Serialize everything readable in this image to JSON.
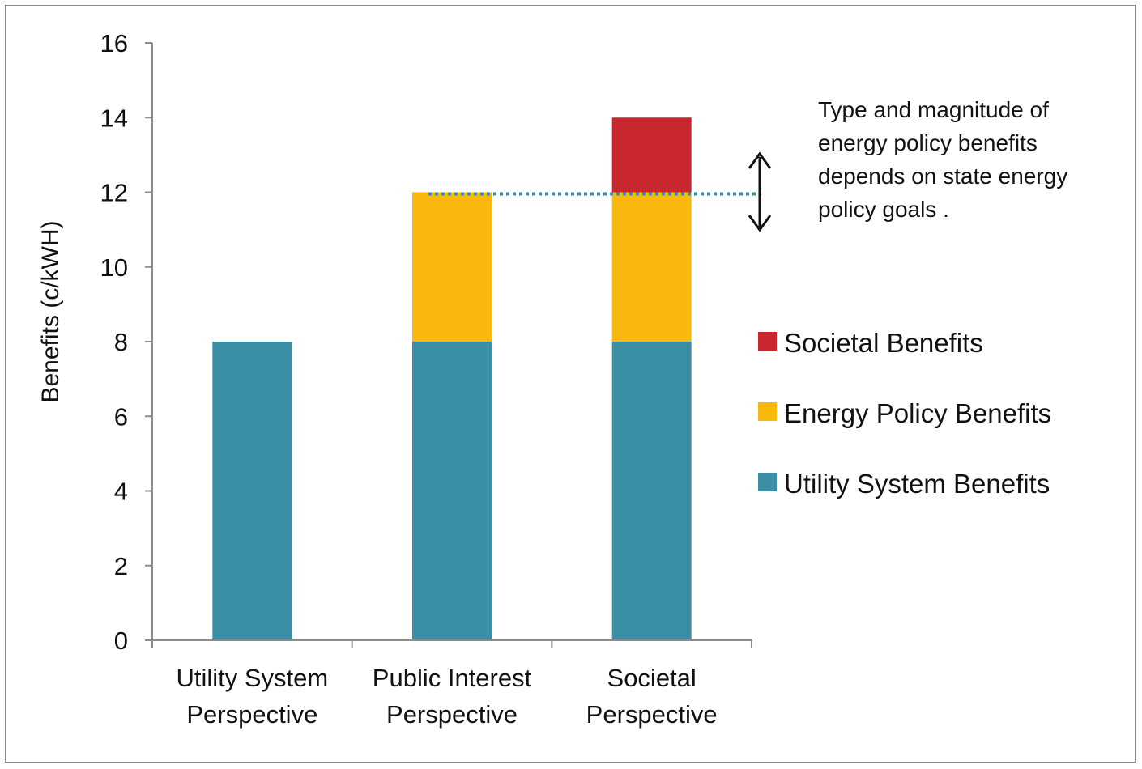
{
  "chart_data": {
    "type": "bar",
    "stacked": true,
    "categories": [
      [
        "Utility System",
        "Perspective"
      ],
      [
        "Public Interest",
        "Perspective"
      ],
      [
        "Societal",
        "Perspective"
      ]
    ],
    "series": [
      {
        "name": "Utility System Benefits",
        "color": "#3A8FA5",
        "values": [
          8,
          8,
          8
        ]
      },
      {
        "name": "Energy Policy Benefits",
        "color": "#F8B80E",
        "values": [
          0,
          4,
          4
        ]
      },
      {
        "name": "Societal Benefits",
        "color": "#C8272D",
        "values": [
          0,
          0,
          2
        ]
      }
    ],
    "ylabel": "Benefits (c/kWH)",
    "ylim": [
      0,
      16
    ],
    "yticks": [
      0,
      2,
      4,
      6,
      8,
      10,
      12,
      14,
      16
    ],
    "reference_line": {
      "y": 12,
      "style": "dotted",
      "color": "#3A8FA5"
    },
    "annotation": {
      "lines": [
        "Type and magnitude of",
        "energy policy benefits",
        "depends on state energy",
        "policy goals ."
      ]
    },
    "legend": {
      "position": "right",
      "order": [
        "Societal Benefits",
        "Energy Policy Benefits",
        "Utility System Benefits"
      ]
    },
    "grid": false
  }
}
